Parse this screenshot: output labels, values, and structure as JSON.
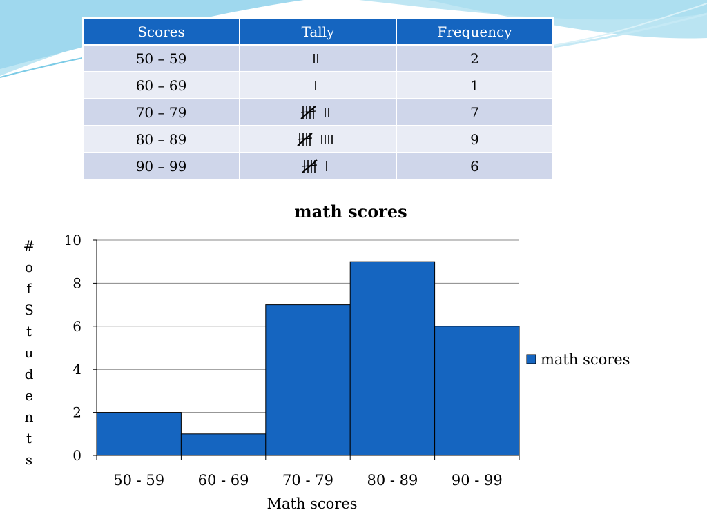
{
  "colors": {
    "bar": "#1565c0",
    "header": "#1565c0",
    "row_odd": "#cfd6ea",
    "row_even": "#e9ecf5",
    "swoosh": "#9fd8ee"
  },
  "table": {
    "headers": [
      "Scores",
      "Tally",
      "Frequency"
    ],
    "rows": [
      {
        "scores": "50 – 59",
        "tally": 2,
        "frequency": "2"
      },
      {
        "scores": "60 – 69",
        "tally": 1,
        "frequency": "1"
      },
      {
        "scores": "70 – 79",
        "tally": 7,
        "frequency": "7"
      },
      {
        "scores": "80 – 89",
        "tally": 9,
        "frequency": "9"
      },
      {
        "scores": "90 – 99",
        "tally": 6,
        "frequency": "6"
      }
    ]
  },
  "chart_data": {
    "type": "bar",
    "title": "math scores",
    "categories": [
      "50 - 59",
      "60 - 69",
      "70 - 79",
      "80 - 89",
      "90 - 99"
    ],
    "series": [
      {
        "name": "math scores",
        "values": [
          2,
          1,
          7,
          9,
          6
        ]
      }
    ],
    "xlabel": "Math scores",
    "ylabel": "# of Students",
    "ylim": [
      0,
      10
    ],
    "yticks": [
      0,
      2,
      4,
      6,
      8,
      10
    ],
    "grid": true,
    "legend": "right"
  }
}
